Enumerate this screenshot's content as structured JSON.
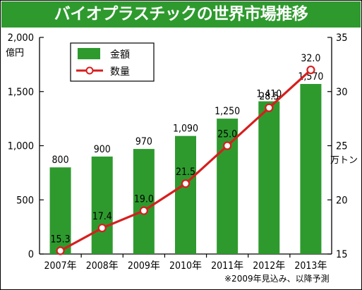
{
  "title": "バイオプラスチックの世界市場推移",
  "footnote": "※2009年見込み、以降予測",
  "colors": {
    "header": "#2e9a2e",
    "bar": "#2e9a2e",
    "line": "#d71e1e",
    "marker_fill": "#ffffff"
  },
  "chart_data": {
    "type": "bar+line",
    "categories": [
      "2007年",
      "2008年",
      "2009年",
      "2010年",
      "2011年",
      "2012年",
      "2013年"
    ],
    "series": [
      {
        "name": "金額",
        "type": "bar",
        "axis": "left",
        "unit": "億円",
        "values": [
          800,
          900,
          970,
          1090,
          1250,
          1410,
          1570
        ],
        "labels": [
          "800",
          "900",
          "970",
          "1,090",
          "1,250",
          "1,410",
          "1,570"
        ]
      },
      {
        "name": "数量",
        "type": "line",
        "axis": "right",
        "unit": "万トン",
        "values": [
          15.3,
          17.4,
          19.0,
          21.5,
          25.0,
          28.5,
          32.0
        ],
        "labels": [
          "15.3",
          "17.4",
          "19.0",
          "21.5",
          "25.0",
          "28.5",
          "32.0"
        ]
      }
    ],
    "left_axis": {
      "unit_label": "億円",
      "ylim": [
        0,
        2000
      ],
      "ticks": [
        0,
        500,
        1000,
        1500,
        2000
      ],
      "tick_labels": [
        "0",
        "500",
        "1,000",
        "1,500",
        "2,000"
      ]
    },
    "right_axis": {
      "unit_label": "万トン",
      "ylim": [
        15,
        35
      ],
      "ticks": [
        15,
        20,
        25,
        30,
        35
      ],
      "tick_labels": [
        "15",
        "20",
        "25",
        "30",
        "35"
      ]
    },
    "legend": {
      "position": "top-left",
      "entries": [
        "金額",
        "数量"
      ]
    },
    "grid": false
  }
}
